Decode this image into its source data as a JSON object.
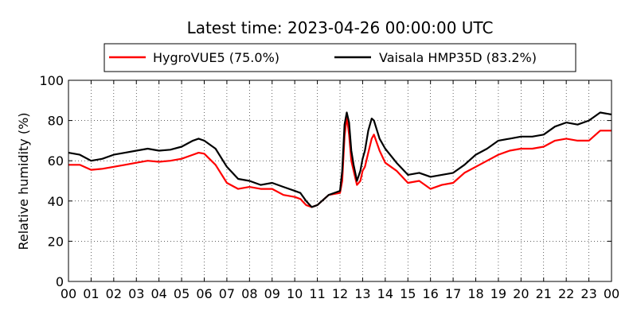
{
  "chart_data": {
    "type": "line",
    "title": "Latest time: 2023-04-26 00:00:00 UTC",
    "xlabel": "",
    "ylabel": "Relative humidity (%)",
    "xlim": [
      0,
      24
    ],
    "ylim": [
      0,
      100
    ],
    "grid": true,
    "legend_position": "top",
    "x_tick_labels": [
      "00",
      "01",
      "02",
      "03",
      "04",
      "05",
      "06",
      "07",
      "08",
      "09",
      "10",
      "11",
      "12",
      "13",
      "14",
      "15",
      "16",
      "17",
      "18",
      "19",
      "20",
      "21",
      "22",
      "23",
      "00"
    ],
    "y_tick_labels": [
      "0",
      "20",
      "40",
      "60",
      "80",
      "100"
    ],
    "y_ticks": [
      0,
      20,
      40,
      60,
      80,
      100
    ],
    "x": [
      0,
      0.5,
      1,
      1.5,
      2,
      2.5,
      3,
      3.5,
      4,
      4.5,
      5,
      5.5,
      5.75,
      6,
      6.5,
      7,
      7.5,
      8,
      8.5,
      9,
      9.5,
      10,
      10.25,
      10.5,
      10.75,
      11,
      11.5,
      12,
      12.1,
      12.2,
      12.3,
      12.4,
      12.5,
      12.6,
      12.75,
      12.9,
      13,
      13.1,
      13.25,
      13.4,
      13.5,
      13.75,
      14,
      14.5,
      15,
      15.5,
      16,
      16.5,
      17,
      17.5,
      18,
      18.5,
      19,
      19.5,
      20,
      20.5,
      21,
      21.5,
      22,
      22.5,
      23,
      23.5,
      24
    ],
    "series": [
      {
        "name": "HygroVUE5 (75.0%)",
        "color": "#ff0000",
        "values": [
          58,
          58,
          55.5,
          56,
          57,
          58,
          59,
          60,
          59.5,
          60,
          61,
          63,
          64,
          63.5,
          58,
          49,
          46,
          47,
          46,
          46,
          43,
          42,
          41,
          38,
          37,
          38,
          43,
          44,
          50,
          72,
          82,
          73,
          60,
          55,
          48,
          50,
          55,
          57,
          64,
          71,
          73,
          65,
          59,
          55,
          49,
          50,
          46,
          48,
          49,
          54,
          57,
          60,
          63,
          65,
          66,
          66,
          67,
          70,
          71,
          70,
          70,
          75,
          75
        ]
      },
      {
        "name": "Vaisala HMP35D (83.2%)",
        "color": "#000000",
        "values": [
          64,
          63,
          60,
          61,
          63,
          64,
          65,
          66,
          65,
          65.5,
          67,
          70,
          71,
          70,
          66,
          57,
          51,
          50,
          48,
          49,
          47,
          45,
          44,
          40,
          37,
          38,
          43,
          45,
          55,
          78,
          84,
          79,
          65,
          58,
          50,
          55,
          61,
          65,
          75,
          81,
          80,
          71,
          66,
          59,
          53,
          54,
          52,
          53,
          54,
          58,
          63,
          66,
          70,
          71,
          72,
          72,
          73,
          77,
          79,
          78,
          80,
          84,
          83
        ]
      }
    ]
  }
}
